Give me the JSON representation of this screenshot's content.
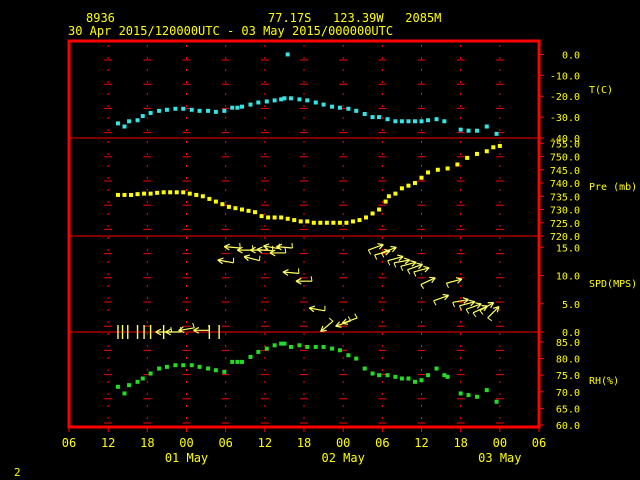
{
  "header": {
    "station_id": "8936",
    "location": "77.17S   123.39W   2085M",
    "period": "30 Apr 2015/120000UTC - 03 May 2015/000000UTC"
  },
  "footer": {
    "page_number": "2"
  },
  "colors": {
    "background": "#000000",
    "frame": "#ff0000",
    "grid_cross": "#ff0000",
    "text": "#ffff00",
    "temperature": "#33e6e6",
    "pressure": "#ffff00",
    "wind": "#ffff66",
    "humidity": "#22dd22"
  },
  "chart_data": {
    "type": "scatter",
    "x_unit": "hours since 30 Apr 2015 06UTC",
    "x_ticks": [
      {
        "h": 0,
        "label": "06"
      },
      {
        "h": 6,
        "label": "12"
      },
      {
        "h": 12,
        "label": "18"
      },
      {
        "h": 18,
        "label": "00"
      },
      {
        "h": 24,
        "label": "06"
      },
      {
        "h": 30,
        "label": "12"
      },
      {
        "h": 36,
        "label": "18"
      },
      {
        "h": 42,
        "label": "00"
      },
      {
        "h": 48,
        "label": "06"
      },
      {
        "h": 54,
        "label": "12"
      },
      {
        "h": 60,
        "label": "18"
      },
      {
        "h": 66,
        "label": "00"
      },
      {
        "h": 72,
        "label": "06"
      }
    ],
    "date_labels": [
      {
        "h": 18,
        "label": "01 May"
      },
      {
        "h": 42,
        "label": "02 May"
      },
      {
        "h": 66,
        "label": "03 May"
      }
    ],
    "xlim": [
      0,
      72
    ],
    "panels": [
      {
        "name": "temperature",
        "label": "T(C)",
        "ylim": [
          -40,
          5
        ],
        "ticks": [
          {
            "v": 0,
            "label": "0.0"
          },
          {
            "v": -10,
            "label": "-10.0"
          },
          {
            "v": -20,
            "label": "-20.0"
          },
          {
            "v": -30,
            "label": "-30.0"
          },
          {
            "v": -40,
            "label": "-40.0"
          }
        ],
        "points": [
          [
            7.5,
            -33
          ],
          [
            8.5,
            -34.5
          ],
          [
            9.2,
            -32
          ],
          [
            10.5,
            -31.5
          ],
          [
            11.3,
            -29.5
          ],
          [
            12.5,
            -28
          ],
          [
            13.8,
            -27
          ],
          [
            15,
            -26.5
          ],
          [
            16.3,
            -26
          ],
          [
            17.5,
            -26
          ],
          [
            18.8,
            -26.5
          ],
          [
            20,
            -27
          ],
          [
            21.3,
            -27
          ],
          [
            22.5,
            -27.5
          ],
          [
            23.8,
            -27
          ],
          [
            25,
            -25.5
          ],
          [
            25.8,
            -25.5
          ],
          [
            26.5,
            -25
          ],
          [
            27.8,
            -24
          ],
          [
            29,
            -23
          ],
          [
            30.3,
            -22.5
          ],
          [
            31.5,
            -22
          ],
          [
            32.5,
            -21.5
          ],
          [
            33,
            -21
          ],
          [
            34,
            -21
          ],
          [
            35.3,
            -21.5
          ],
          [
            36.5,
            -22
          ],
          [
            37.8,
            -23
          ],
          [
            39,
            -24
          ],
          [
            40.3,
            -25
          ],
          [
            41.5,
            -25.5
          ],
          [
            42.8,
            -26
          ],
          [
            44,
            -27
          ],
          [
            45.3,
            -28.5
          ],
          [
            46.5,
            -30
          ],
          [
            47.5,
            -30
          ],
          [
            48.8,
            -31
          ],
          [
            50,
            -32
          ],
          [
            51,
            -32
          ],
          [
            52,
            -32
          ],
          [
            53,
            -32
          ],
          [
            54,
            -32
          ],
          [
            55,
            -31.5
          ],
          [
            56.3,
            -31
          ],
          [
            57.5,
            -32
          ],
          [
            60,
            -36
          ],
          [
            61.2,
            -36.5
          ],
          [
            62.5,
            -36.5
          ],
          [
            64,
            -34.5
          ],
          [
            65.5,
            -38
          ],
          [
            33.5,
            0
          ]
        ]
      },
      {
        "name": "pressure",
        "label": "Pre (mb)",
        "ylim": [
          720,
          757
        ],
        "ticks": [
          {
            "v": 755,
            "label": "755.0"
          },
          {
            "v": 750,
            "label": "750.0"
          },
          {
            "v": 745,
            "label": "745.0"
          },
          {
            "v": 740,
            "label": "740.0"
          },
          {
            "v": 735,
            "label": "735.0"
          },
          {
            "v": 730,
            "label": "730.0"
          },
          {
            "v": 725,
            "label": "725.0"
          },
          {
            "v": 720,
            "label": "720.0"
          }
        ],
        "points": [
          [
            7.5,
            735.5
          ],
          [
            8.5,
            735.5
          ],
          [
            9.5,
            735.5
          ],
          [
            10.5,
            735.8
          ],
          [
            11.5,
            736
          ],
          [
            12.5,
            736
          ],
          [
            13.5,
            736.3
          ],
          [
            14.5,
            736.5
          ],
          [
            15.5,
            736.5
          ],
          [
            16.5,
            736.5
          ],
          [
            17.5,
            736.5
          ],
          [
            18.5,
            736
          ],
          [
            19.5,
            735.5
          ],
          [
            20.5,
            735
          ],
          [
            21.5,
            734
          ],
          [
            22.5,
            733
          ],
          [
            23.5,
            732
          ],
          [
            24.5,
            731
          ],
          [
            25.5,
            730.5
          ],
          [
            26.5,
            730
          ],
          [
            27.5,
            729.5
          ],
          [
            28.5,
            729
          ],
          [
            29.5,
            727.5
          ],
          [
            30.5,
            727
          ],
          [
            31.5,
            727
          ],
          [
            32.5,
            727
          ],
          [
            33.5,
            726.5
          ],
          [
            34.5,
            726
          ],
          [
            35.5,
            725.5
          ],
          [
            36.5,
            725.5
          ],
          [
            37.5,
            725
          ],
          [
            38.5,
            725
          ],
          [
            39.5,
            725
          ],
          [
            40.5,
            725
          ],
          [
            41.5,
            725
          ],
          [
            42.5,
            725
          ],
          [
            43.5,
            725.5
          ],
          [
            44.5,
            726
          ],
          [
            45.5,
            727
          ],
          [
            46.5,
            728.5
          ],
          [
            47.5,
            730
          ],
          [
            48.5,
            733
          ],
          [
            49,
            735
          ],
          [
            50,
            736
          ],
          [
            51,
            738
          ],
          [
            52,
            739
          ],
          [
            53,
            740
          ],
          [
            54,
            742
          ],
          [
            55,
            744
          ],
          [
            56.5,
            745
          ],
          [
            58,
            745.5
          ],
          [
            59.5,
            747
          ],
          [
            61,
            749.5
          ],
          [
            62.5,
            751
          ],
          [
            64,
            752
          ],
          [
            65,
            753.5
          ],
          [
            66,
            754
          ]
        ]
      },
      {
        "name": "wind",
        "label": "SPD(MPS)",
        "ylim": [
          0,
          17
        ],
        "ticks": [
          {
            "v": 15,
            "label": "15.0"
          },
          {
            "v": 10,
            "label": "10.0"
          },
          {
            "v": 5,
            "label": "5.0"
          },
          {
            "v": 0,
            "label": "0.0"
          }
        ],
        "calm_bars_h": [
          7.5,
          8.2,
          9,
          10.5,
          11.5,
          12.5,
          14.5,
          21.5,
          23
        ],
        "arrows": [
          {
            "h": 14.5,
            "v": 0,
            "dir": 180
          },
          {
            "h": 16,
            "v": 0,
            "dir": 180
          },
          {
            "h": 18,
            "v": 0.5,
            "dir": 190
          },
          {
            "h": 20.3,
            "v": 0.3,
            "dir": 180
          },
          {
            "h": 24,
            "v": 12.5,
            "dir": 170
          },
          {
            "h": 25,
            "v": 15,
            "dir": 175
          },
          {
            "h": 27,
            "v": 14.5,
            "dir": 180
          },
          {
            "h": 28,
            "v": 13,
            "dir": 165
          },
          {
            "h": 29,
            "v": 14.5,
            "dir": 180
          },
          {
            "h": 30,
            "v": 14.5,
            "dir": 175
          },
          {
            "h": 31,
            "v": 15,
            "dir": 170
          },
          {
            "h": 32,
            "v": 14,
            "dir": 180
          },
          {
            "h": 33,
            "v": 15,
            "dir": 175
          },
          {
            "h": 34,
            "v": 10.5,
            "dir": 175
          },
          {
            "h": 36,
            "v": 9,
            "dir": 180
          },
          {
            "h": 38,
            "v": 4,
            "dir": 170
          },
          {
            "h": 39.5,
            "v": 1,
            "dir": 220
          },
          {
            "h": 42,
            "v": 1.5,
            "dir": 200
          },
          {
            "h": 43,
            "v": 2,
            "dir": 200
          },
          {
            "h": 47,
            "v": 15,
            "dir": 20
          },
          {
            "h": 48,
            "v": 14,
            "dir": 15
          },
          {
            "h": 49,
            "v": 14.5,
            "dir": 20
          },
          {
            "h": 50,
            "v": 13,
            "dir": 15
          },
          {
            "h": 51,
            "v": 12.5,
            "dir": 10
          },
          {
            "h": 52,
            "v": 12,
            "dir": 15
          },
          {
            "h": 53,
            "v": 11.5,
            "dir": 20
          },
          {
            "h": 54,
            "v": 11,
            "dir": 15
          },
          {
            "h": 55,
            "v": 9,
            "dir": 25
          },
          {
            "h": 57,
            "v": 6,
            "dir": 20
          },
          {
            "h": 59,
            "v": 9,
            "dir": 15
          },
          {
            "h": 60,
            "v": 5.5,
            "dir": 10
          },
          {
            "h": 61,
            "v": 5,
            "dir": 15
          },
          {
            "h": 62,
            "v": 4.5,
            "dir": 20
          },
          {
            "h": 63,
            "v": 4,
            "dir": 25
          },
          {
            "h": 64,
            "v": 4.5,
            "dir": 30
          },
          {
            "h": 65,
            "v": 3.5,
            "dir": 45
          }
        ]
      },
      {
        "name": "humidity",
        "label": "RH(%)",
        "ylim": [
          60,
          88
        ],
        "ticks": [
          {
            "v": 85,
            "label": "85.0"
          },
          {
            "v": 80,
            "label": "80.0"
          },
          {
            "v": 75,
            "label": "75.0"
          },
          {
            "v": 70,
            "label": "70.0"
          },
          {
            "v": 65,
            "label": "65.0"
          },
          {
            "v": 60,
            "label": "60.0"
          }
        ],
        "points": [
          [
            7.5,
            71.5
          ],
          [
            8.5,
            69.5
          ],
          [
            9.2,
            72
          ],
          [
            10.5,
            73
          ],
          [
            11.3,
            74
          ],
          [
            12.5,
            75.5
          ],
          [
            13.8,
            77
          ],
          [
            15,
            77.5
          ],
          [
            16.3,
            78
          ],
          [
            17.5,
            78
          ],
          [
            18.8,
            78
          ],
          [
            20,
            77.5
          ],
          [
            21.3,
            77
          ],
          [
            22.5,
            76.5
          ],
          [
            23.8,
            76
          ],
          [
            25,
            79
          ],
          [
            25.8,
            79
          ],
          [
            26.5,
            79
          ],
          [
            27.8,
            80.5
          ],
          [
            29,
            82
          ],
          [
            30.3,
            83
          ],
          [
            31.5,
            84
          ],
          [
            32.5,
            84.5
          ],
          [
            33,
            84.5
          ],
          [
            34,
            83.5
          ],
          [
            35.3,
            84
          ],
          [
            36.5,
            83.5
          ],
          [
            37.8,
            83.5
          ],
          [
            39,
            83.5
          ],
          [
            40.3,
            83
          ],
          [
            41.5,
            82.5
          ],
          [
            42.8,
            81
          ],
          [
            44,
            80
          ],
          [
            45.3,
            77
          ],
          [
            46.5,
            75.5
          ],
          [
            47.5,
            75
          ],
          [
            48.8,
            75
          ],
          [
            50,
            74.5
          ],
          [
            51,
            74
          ],
          [
            52,
            74
          ],
          [
            53,
            73
          ],
          [
            54,
            73.5
          ],
          [
            55,
            75
          ],
          [
            56.3,
            77
          ],
          [
            57.5,
            75
          ],
          [
            58,
            74.5
          ],
          [
            60,
            69.5
          ],
          [
            61.2,
            69
          ],
          [
            62.5,
            68.5
          ],
          [
            64,
            70.5
          ],
          [
            65.5,
            67
          ]
        ]
      }
    ]
  }
}
